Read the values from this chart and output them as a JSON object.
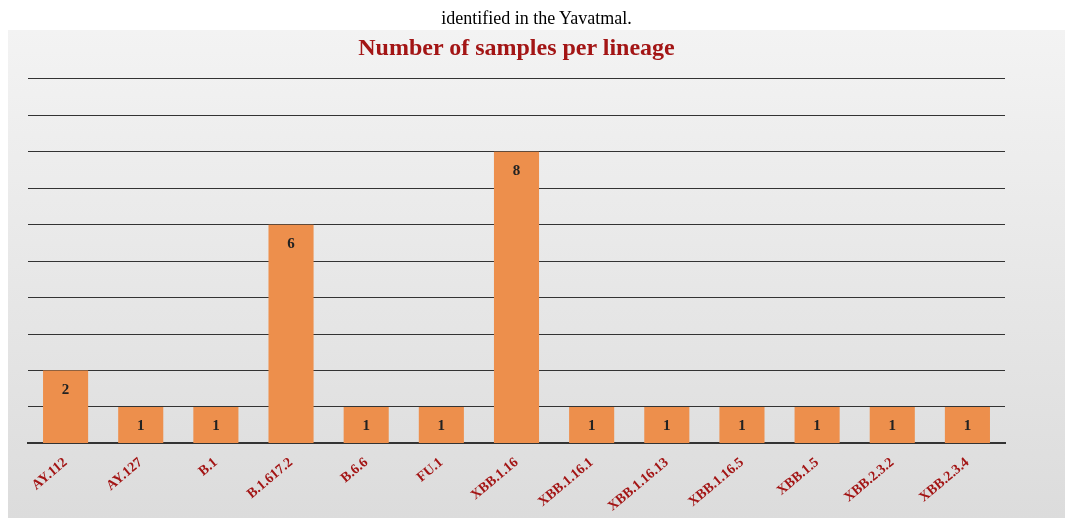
{
  "chart_data": {
    "type": "bar",
    "title": "Number of samples per lineage",
    "annotations": [
      "identified in the Yavatmal."
    ],
    "categories": [
      "AY.112",
      "AY.127",
      "B.1",
      "B.1.617.2",
      "B.6.6",
      "FU.1",
      "XBB.1.16",
      "XBB.1.16.1",
      "XBB.1.16.13",
      "XBB.1.16.5",
      "XBB.1.5",
      "XBB.2.3.2",
      "XBB.2.3.4"
    ],
    "values": [
      2,
      1,
      1,
      6,
      1,
      1,
      8,
      1,
      1,
      1,
      1,
      1,
      1
    ],
    "color": "#ed8f4c",
    "ylim": [
      0,
      10
    ],
    "grid": "y",
    "tick_labels": "x",
    "legend": false,
    "data_labels": true
  }
}
